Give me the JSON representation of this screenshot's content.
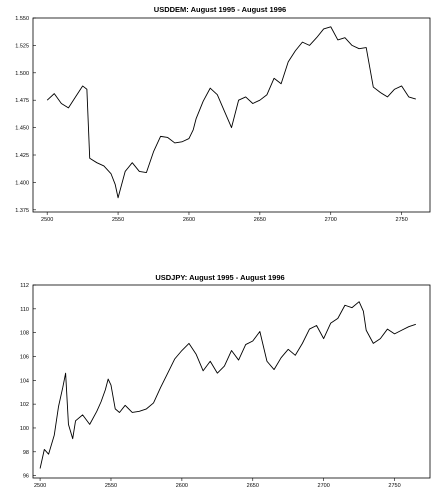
{
  "chart_data": [
    {
      "type": "line",
      "title": "USDDEM: August 1995 - August 1996",
      "xlabel": "",
      "ylabel": "",
      "xlim": [
        2490,
        2770
      ],
      "ylim": [
        1.373,
        1.55
      ],
      "xticks": [
        2500,
        2550,
        2600,
        2650,
        2700,
        2750
      ],
      "xtick_labels": [
        "2500",
        "2550",
        "2600",
        "2650",
        "2700",
        "2750"
      ],
      "yticks": [
        1.375,
        1.4,
        1.425,
        1.45,
        1.475,
        1.5,
        1.525,
        1.55
      ],
      "ytick_labels": [
        "1.375",
        "1.400",
        "1.425",
        "1.450",
        "1.475",
        "1.500",
        "1.525",
        "1.550"
      ],
      "grid": false,
      "series": [
        {
          "x": [
            2500,
            2505,
            2510,
            2515,
            2520,
            2525,
            2528,
            2530,
            2535,
            2540,
            2545,
            2548,
            2550,
            2555,
            2560,
            2565,
            2570,
            2575,
            2580,
            2585,
            2590,
            2595,
            2600,
            2603,
            2605,
            2610,
            2615,
            2620,
            2625,
            2630,
            2635,
            2640,
            2645,
            2650,
            2655,
            2660,
            2665,
            2670,
            2675,
            2680,
            2685,
            2690,
            2695,
            2700,
            2705,
            2710,
            2715,
            2720,
            2725,
            2730,
            2735,
            2740,
            2745,
            2750,
            2755,
            2760
          ],
          "y": [
            1.475,
            1.481,
            1.472,
            1.468,
            1.478,
            1.488,
            1.485,
            1.422,
            1.418,
            1.415,
            1.408,
            1.398,
            1.386,
            1.41,
            1.418,
            1.41,
            1.409,
            1.428,
            1.442,
            1.441,
            1.436,
            1.437,
            1.44,
            1.448,
            1.458,
            1.474,
            1.486,
            1.48,
            1.465,
            1.45,
            1.475,
            1.478,
            1.472,
            1.475,
            1.48,
            1.495,
            1.49,
            1.51,
            1.52,
            1.528,
            1.525,
            1.532,
            1.54,
            1.542,
            1.53,
            1.532,
            1.525,
            1.522,
            1.523,
            1.487,
            1.482,
            1.478,
            1.485,
            1.488,
            1.478,
            1.476
          ]
        }
      ]
    },
    {
      "type": "line",
      "title": "USDJPY: August 1995 - August 1996",
      "xlabel": "",
      "ylabel": "",
      "xlim": [
        2495,
        2775
      ],
      "ylim": [
        95.8,
        112
      ],
      "xticks": [
        2500,
        2550,
        2600,
        2650,
        2700,
        2750
      ],
      "xtick_labels": [
        "2500",
        "2550",
        "2600",
        "2650",
        "2700",
        "2750"
      ],
      "yticks": [
        96,
        98,
        100,
        102,
        104,
        106,
        108,
        110,
        112
      ],
      "ytick_labels": [
        "96",
        "98",
        "100",
        "102",
        "104",
        "106",
        "108",
        "110",
        "112"
      ],
      "grid": false,
      "series": [
        {
          "x": [
            2500,
            2503,
            2506,
            2510,
            2513,
            2516,
            2518,
            2520,
            2523,
            2525,
            2530,
            2535,
            2540,
            2543,
            2546,
            2548,
            2550,
            2553,
            2556,
            2560,
            2565,
            2570,
            2575,
            2580,
            2585,
            2590,
            2595,
            2600,
            2605,
            2610,
            2615,
            2620,
            2625,
            2630,
            2635,
            2640,
            2645,
            2650,
            2655,
            2660,
            2665,
            2670,
            2675,
            2680,
            2685,
            2690,
            2695,
            2700,
            2705,
            2710,
            2715,
            2720,
            2725,
            2728,
            2730,
            2735,
            2740,
            2745,
            2750,
            2755,
            2760,
            2765
          ],
          "y": [
            96.6,
            98.2,
            97.8,
            99.4,
            101.8,
            103.4,
            104.6,
            100.3,
            99.1,
            100.6,
            101.1,
            100.3,
            101.4,
            102.2,
            103.2,
            104.1,
            103.6,
            101.6,
            101.3,
            101.9,
            101.3,
            101.4,
            101.6,
            102.1,
            103.4,
            104.6,
            105.8,
            106.5,
            107.1,
            106.2,
            104.8,
            105.6,
            104.6,
            105.2,
            106.5,
            105.7,
            107.0,
            107.3,
            108.1,
            105.6,
            104.9,
            105.9,
            106.6,
            106.1,
            107.1,
            108.3,
            108.6,
            107.5,
            108.8,
            109.2,
            110.3,
            110.1,
            110.6,
            109.8,
            108.2,
            107.1,
            107.5,
            108.3,
            107.9,
            108.2,
            108.5,
            108.7
          ]
        }
      ]
    }
  ]
}
